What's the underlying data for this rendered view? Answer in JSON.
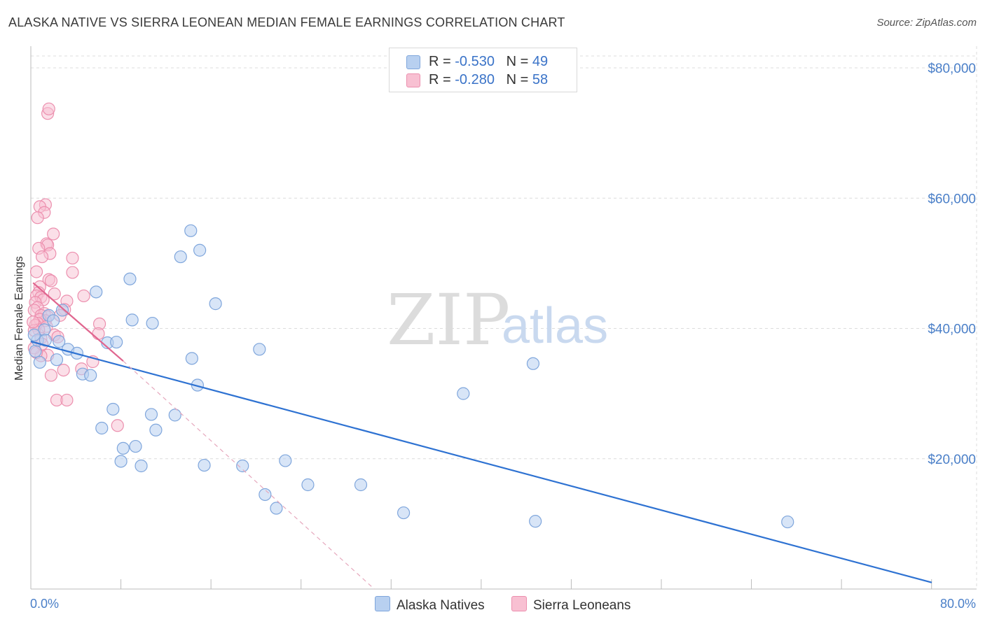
{
  "title": "ALASKA NATIVE VS SIERRA LEONEAN MEDIAN FEMALE EARNINGS CORRELATION CHART",
  "source": "Source: ZipAtlas.com",
  "watermark": {
    "zip": "ZIP",
    "atlas": "atlas"
  },
  "colors": {
    "blue_fill": "#b8d0f0",
    "blue_stroke": "#7fa6dc",
    "blue_line": "#2e72d2",
    "pink_fill": "#f8c0d2",
    "pink_stroke": "#ec8fae",
    "pink_line": "#e0668f",
    "grid": "#dcdcdc",
    "tick_text": "#4a7fc8"
  },
  "legend": {
    "rows": [
      {
        "r_label": "R = ",
        "r_value": "-0.530",
        "n_label": "N = ",
        "n_value": "49"
      },
      {
        "r_label": "R = ",
        "r_value": "-0.280",
        "n_label": "N = ",
        "n_value": "58"
      }
    ]
  },
  "bottom_legend": {
    "series_a": "Alaska Natives",
    "series_b": "Sierra Leoneans"
  },
  "chart_data": {
    "type": "scatter",
    "title": "ALASKA NATIVE VS SIERRA LEONEAN MEDIAN FEMALE EARNINGS CORRELATION CHART",
    "ylabel": "Median Female Earnings",
    "xlabel": "",
    "xlim": [
      0,
      80
    ],
    "ylim": [
      0,
      82000
    ],
    "x_tick_labels": [
      "0.0%",
      "80.0%"
    ],
    "y_ticks": [
      20000,
      40000,
      60000,
      80000
    ],
    "y_tick_labels": [
      "$20,000",
      "$40,000",
      "$60,000",
      "$80,000"
    ],
    "grid": true,
    "legend_placement": "top-center",
    "series": [
      {
        "name": "Alaska Natives",
        "r": -0.53,
        "n": 49,
        "trend": {
          "x": [
            0,
            80
          ],
          "y": [
            38000,
            1000
          ],
          "style": "solid"
        },
        "points": [
          [
            0.4,
            36500
          ],
          [
            0.8,
            34800
          ],
          [
            0.6,
            38200
          ],
          [
            1.2,
            39800
          ],
          [
            1.6,
            42000
          ],
          [
            2.0,
            41200
          ],
          [
            2.8,
            42800
          ],
          [
            1.3,
            38200
          ],
          [
            2.5,
            38000
          ],
          [
            3.3,
            36800
          ],
          [
            2.3,
            35200
          ],
          [
            4.1,
            36200
          ],
          [
            4.6,
            33000
          ],
          [
            5.3,
            32800
          ],
          [
            5.8,
            45600
          ],
          [
            6.8,
            37800
          ],
          [
            7.6,
            37900
          ],
          [
            8.8,
            47600
          ],
          [
            9.0,
            41300
          ],
          [
            10.8,
            40800
          ],
          [
            14.3,
            35400
          ],
          [
            13.3,
            51000
          ],
          [
            14.2,
            55000
          ],
          [
            15.0,
            52000
          ],
          [
            16.4,
            43800
          ],
          [
            20.3,
            36800
          ],
          [
            14.8,
            31300
          ],
          [
            7.3,
            27600
          ],
          [
            6.3,
            24700
          ],
          [
            8.2,
            21600
          ],
          [
            9.3,
            21900
          ],
          [
            8.0,
            19600
          ],
          [
            9.8,
            18900
          ],
          [
            10.7,
            26800
          ],
          [
            11.1,
            24400
          ],
          [
            12.8,
            26700
          ],
          [
            15.4,
            19000
          ],
          [
            18.8,
            18900
          ],
          [
            20.8,
            14500
          ],
          [
            21.8,
            12400
          ],
          [
            22.6,
            19700
          ],
          [
            24.6,
            16000
          ],
          [
            29.3,
            16000
          ],
          [
            33.1,
            11700
          ],
          [
            38.4,
            30000
          ],
          [
            44.8,
            10400
          ],
          [
            44.6,
            34600
          ],
          [
            67.2,
            10300
          ],
          [
            0.3,
            39000
          ]
        ]
      },
      {
        "name": "Sierra Leoneans",
        "r": -0.28,
        "n": 58,
        "trend": {
          "x": [
            0.2,
            8.2
          ],
          "y": [
            47000,
            35000
          ],
          "style": "solid",
          "dashed_extension": {
            "x": [
              8.2,
              30.5
            ],
            "y": [
              35000,
              0
            ]
          }
        },
        "points": [
          [
            1.5,
            73000
          ],
          [
            1.6,
            73700
          ],
          [
            1.3,
            59000
          ],
          [
            0.8,
            58700
          ],
          [
            1.2,
            57800
          ],
          [
            0.6,
            57000
          ],
          [
            2.0,
            54500
          ],
          [
            1.4,
            53000
          ],
          [
            1.5,
            52800
          ],
          [
            0.7,
            52300
          ],
          [
            1.7,
            51500
          ],
          [
            1.0,
            51000
          ],
          [
            3.7,
            50800
          ],
          [
            0.5,
            48700
          ],
          [
            3.7,
            48600
          ],
          [
            1.6,
            47500
          ],
          [
            1.8,
            47300
          ],
          [
            0.8,
            46400
          ],
          [
            0.7,
            45500
          ],
          [
            0.5,
            45000
          ],
          [
            0.9,
            44800
          ],
          [
            1.1,
            44400
          ],
          [
            2.1,
            45300
          ],
          [
            4.7,
            45000
          ],
          [
            3.2,
            44200
          ],
          [
            0.4,
            44000
          ],
          [
            0.6,
            43200
          ],
          [
            0.3,
            42800
          ],
          [
            1.2,
            42300
          ],
          [
            3.0,
            42900
          ],
          [
            0.9,
            42000
          ],
          [
            1.5,
            41800
          ],
          [
            1.3,
            41200
          ],
          [
            0.8,
            41400
          ],
          [
            0.6,
            40800
          ],
          [
            1.4,
            40300
          ],
          [
            0.4,
            40500
          ],
          [
            6.1,
            40700
          ],
          [
            0.7,
            39800
          ],
          [
            0.3,
            39700
          ],
          [
            2.1,
            39000
          ],
          [
            2.4,
            38700
          ],
          [
            0.9,
            38500
          ],
          [
            6.0,
            39200
          ],
          [
            1.5,
            35900
          ],
          [
            0.9,
            35800
          ],
          [
            2.9,
            33600
          ],
          [
            4.5,
            33800
          ],
          [
            5.5,
            34900
          ],
          [
            1.8,
            32800
          ],
          [
            2.3,
            29000
          ],
          [
            3.2,
            29000
          ],
          [
            7.7,
            25100
          ],
          [
            0.3,
            37000
          ],
          [
            0.5,
            36300
          ],
          [
            1.0,
            37600
          ],
          [
            2.6,
            42000
          ],
          [
            0.2,
            41000
          ]
        ]
      }
    ]
  }
}
